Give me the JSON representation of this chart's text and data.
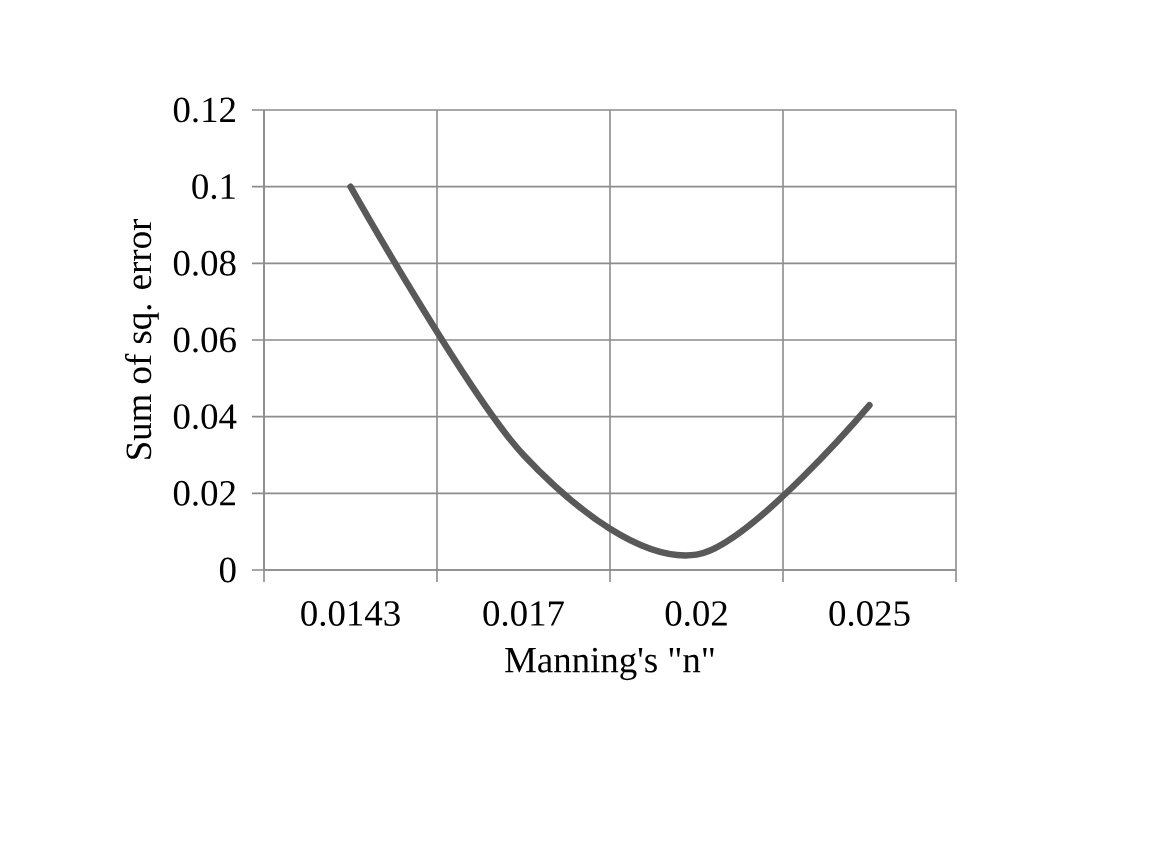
{
  "chart_data": {
    "type": "line",
    "xlabel": "Manning's \"n\"",
    "ylabel": "Sum of sq. error",
    "categories": [
      "0.0143",
      "0.017",
      "0.02",
      "0.025"
    ],
    "series": [
      {
        "color": "#595959",
        "values": [
          0.1,
          0.03,
          0.004,
          0.043
        ]
      }
    ],
    "ylim": [
      0,
      0.12
    ],
    "yticks": [
      0,
      0.02,
      0.04,
      0.06,
      0.08,
      0.1,
      0.12
    ],
    "grid": true,
    "marker": "none",
    "line_style": "solid"
  }
}
